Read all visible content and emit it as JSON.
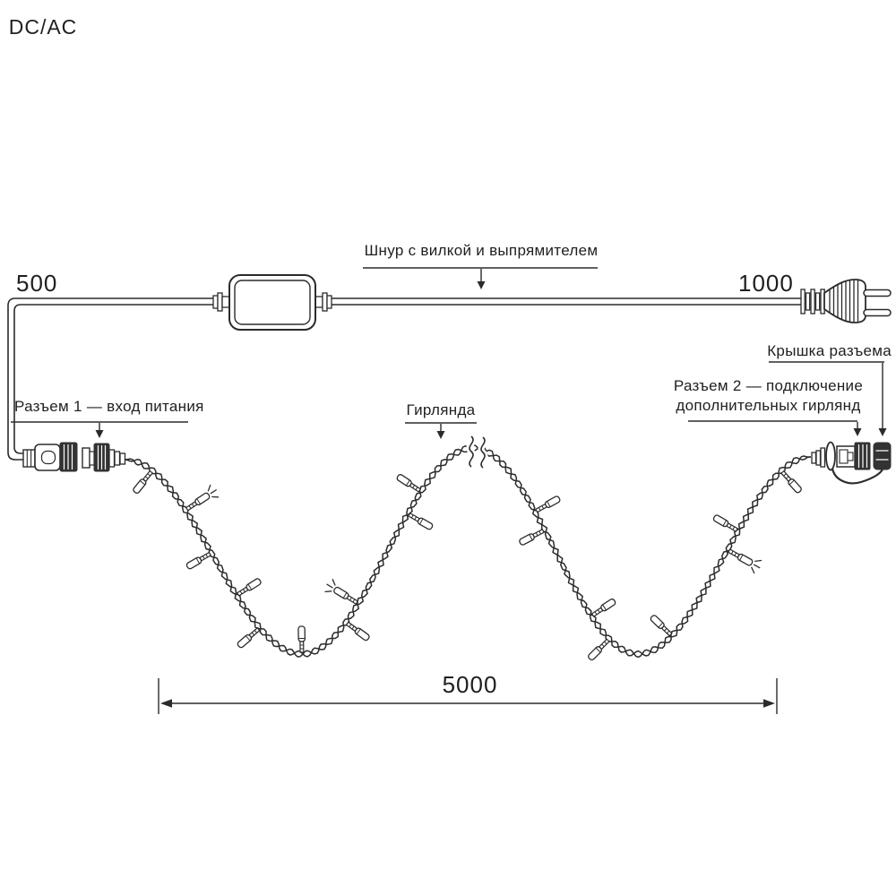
{
  "diagram": {
    "labels": {
      "cord": "Шнур с вилкой и выпрямителем",
      "converter_box": "DC/AC",
      "connector1": "Разъем 1 — вход питания",
      "connector2_line1": "Разъем 2 — подключение",
      "connector2_line2": "дополнительных гирлянд",
      "cap": "Крышка разъема",
      "garland": "Гирлянда"
    },
    "dimensions": {
      "left_cord": "500",
      "plug_cord": "1000",
      "garland_length": "5000"
    },
    "graphics": [
      "dcac-converter-box",
      "euro-plug-icon",
      "connector-1",
      "connector-2",
      "connector-cap",
      "twisted-garland-wire",
      "led-bulbs",
      "wire-break-marks"
    ],
    "colors": {
      "line": "#2b2b2b",
      "dark_fill": "#333333",
      "text": "#1f1f1f",
      "background": "#ffffff"
    }
  }
}
